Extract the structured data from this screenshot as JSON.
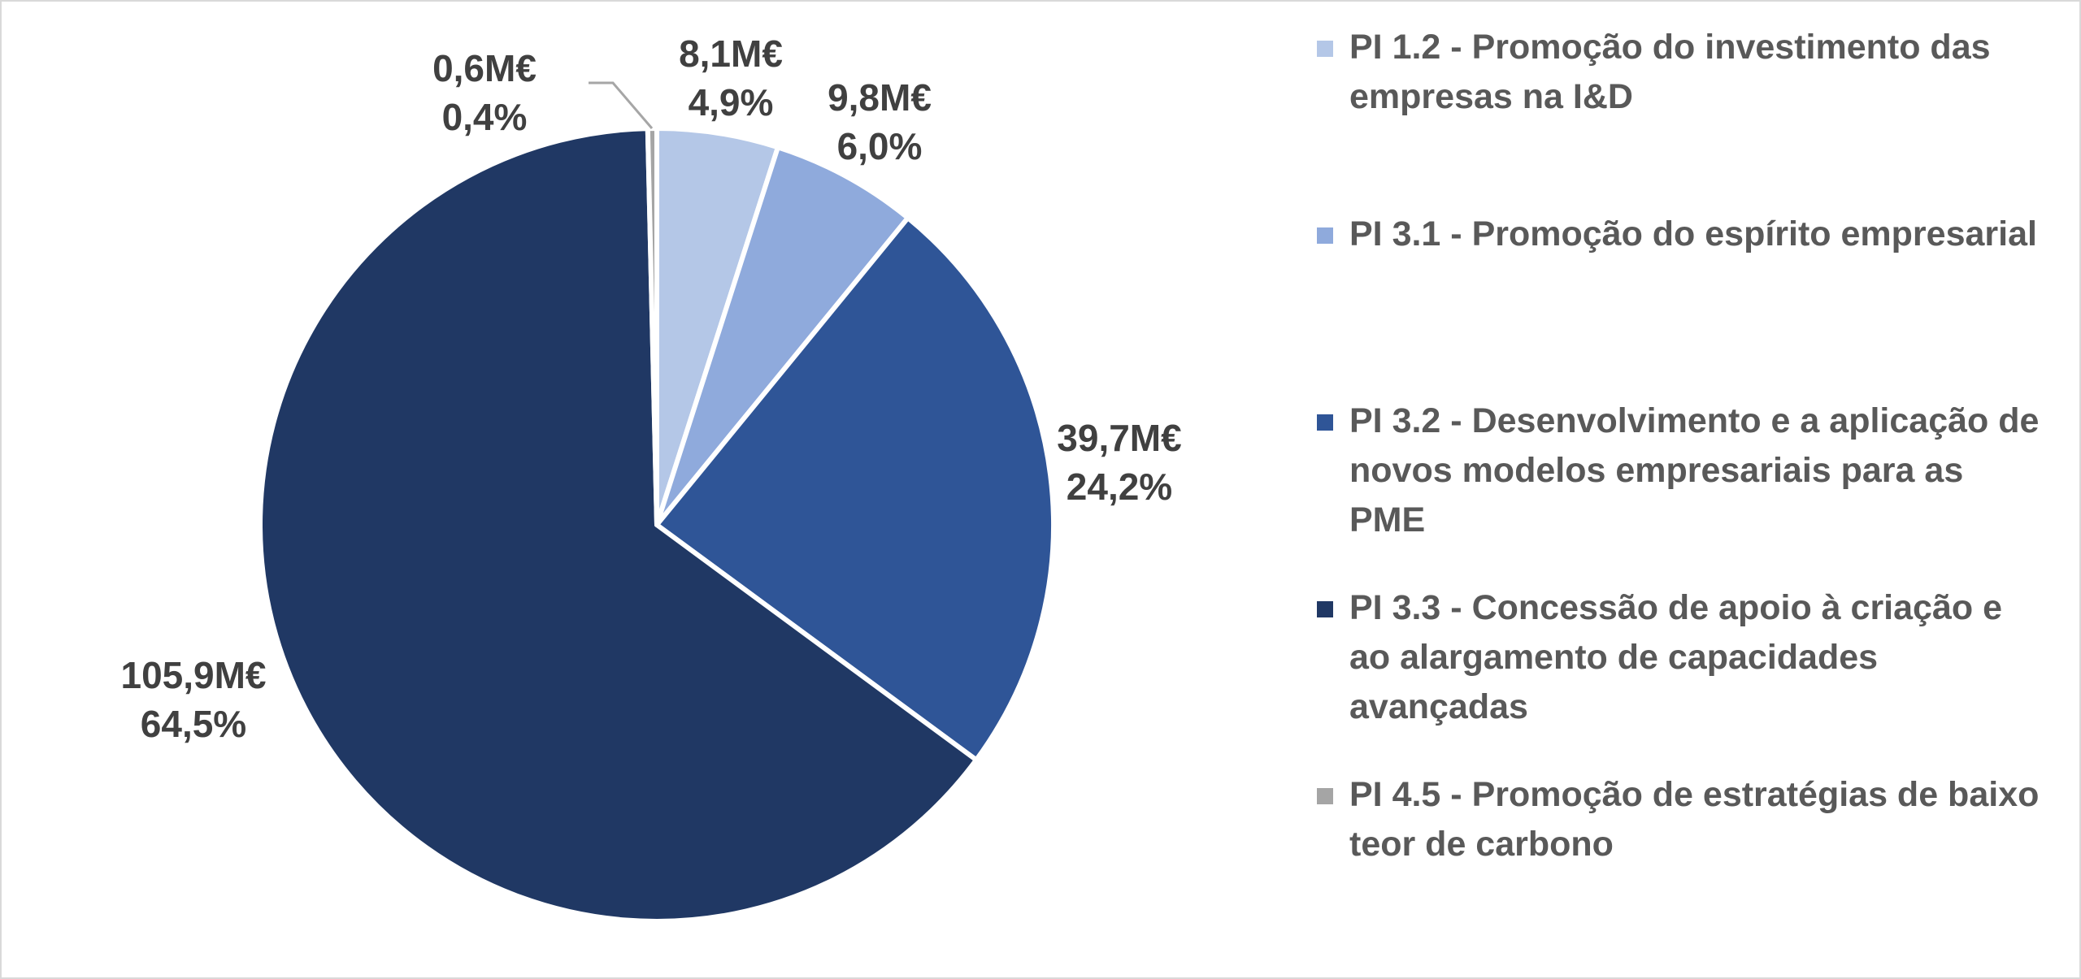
{
  "chart_data": {
    "type": "pie",
    "slices": [
      {
        "label": "PI 1.2 - Promoção do investimento das empresas na I&D",
        "value": 8.1,
        "value_text": "8,1M€",
        "percent_text": "4,9%",
        "color": "#b4c7e7"
      },
      {
        "label": "PI 3.1 - Promoção do espírito empresarial",
        "value": 9.8,
        "value_text": "9,8M€",
        "percent_text": "6,0%",
        "color": "#8faadc"
      },
      {
        "label": "PI 3.2 - Desenvolvimento e a aplicação de novos modelos empresariais para as PME",
        "value": 39.7,
        "value_text": "39,7M€",
        "percent_text": "24,2%",
        "color": "#2f5597"
      },
      {
        "label": "PI 3.3 - Concessão de apoio à criação e ao alargamento de capacidades avançadas",
        "value": 105.9,
        "value_text": "105,9M€",
        "percent_text": "64,5%",
        "color": "#203864"
      },
      {
        "label": "PI 4.5 - Promoção de estratégias de baixo teor de carbono",
        "value": 0.6,
        "value_text": "0,6M€",
        "percent_text": "0,4%",
        "color": "#a5a5a5"
      }
    ],
    "legend_position": "right",
    "start_angle": "12 o'clock, clockwise"
  },
  "legend": {
    "items": [
      {
        "label": "PI 1.2 - Promoção do investimento das empresas na I&D",
        "color": "#b4c7e7"
      },
      {
        "label": "PI 3.1 - Promoção do espírito empresarial",
        "color": "#8faadc"
      },
      {
        "label": "PI 3.2 - Desenvolvimento e a aplicação de novos modelos empresariais para as PME",
        "color": "#2f5597"
      },
      {
        "label": "PI 3.3 - Concessão de apoio à criação e ao alargamento de capacidades avançadas",
        "color": "#203864"
      },
      {
        "label": "PI 4.5 - Promoção de estratégias de baixo teor de carbono",
        "color": "#a5a5a5"
      }
    ]
  }
}
